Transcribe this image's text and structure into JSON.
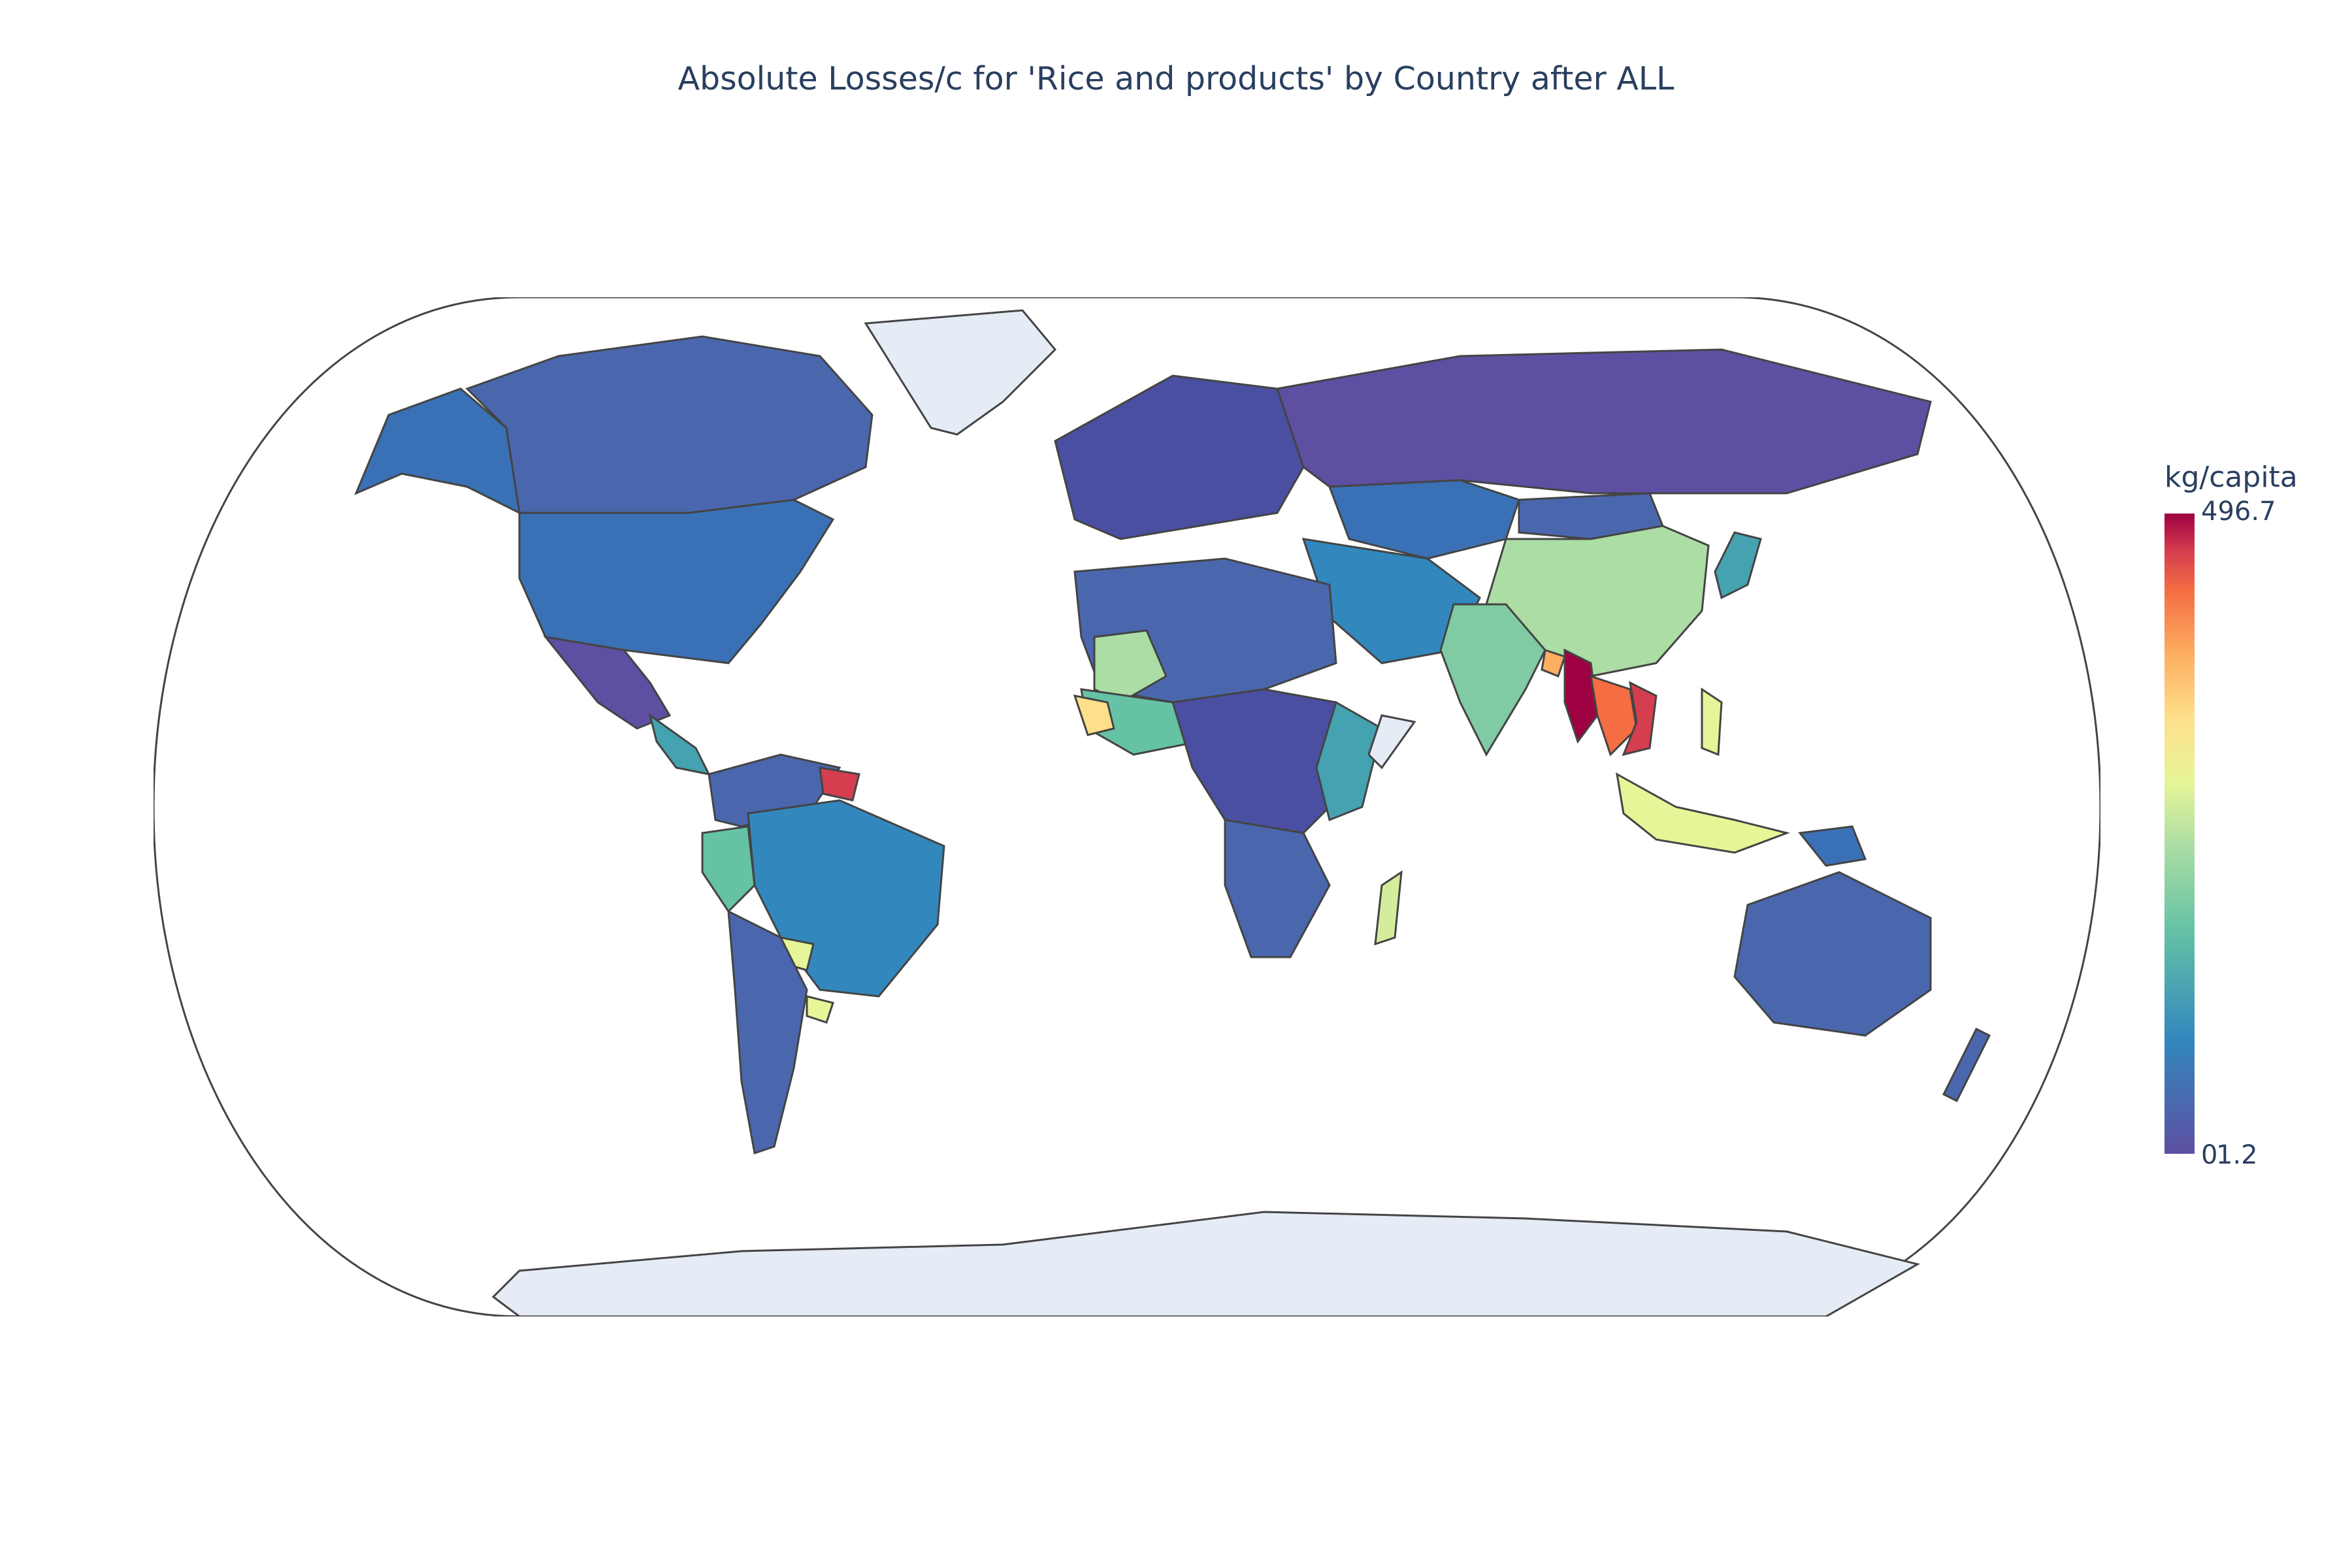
{
  "title": "Absolute Losses/c for 'Rice and products' by Country after ALL",
  "colorbar": {
    "title": "kg/capita",
    "max_label": "496.7",
    "min_label": "0",
    "min_overlap_label": "1.2"
  },
  "colors": {
    "no_data": "#e5ecf6",
    "border": "#444444",
    "scale": [
      "#5e4fa2",
      "#3288bd",
      "#66c2a5",
      "#abdda4",
      "#e6f598",
      "#fee08b",
      "#fdae61",
      "#f46d43",
      "#d53e4f",
      "#9e0142"
    ]
  },
  "legend_color_scale": "Spectral"
}
